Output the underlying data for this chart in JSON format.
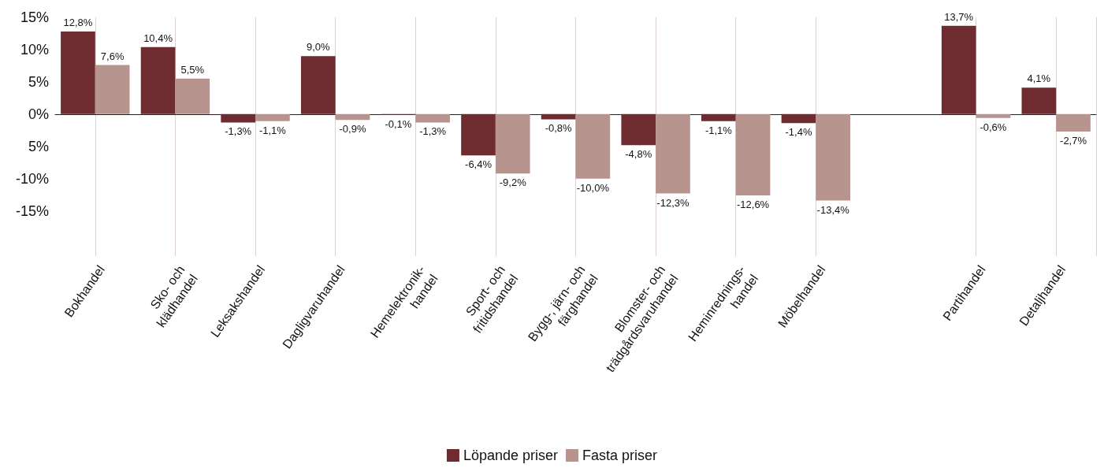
{
  "chart_data": {
    "type": "bar",
    "categories": [
      "Bokhandel",
      "Sko- och\nklädhandel",
      "Leksakshandel",
      "Dagligvaruhandel",
      "Hemelektronik-\nhandel",
      "Sport- och\nfritidshandel",
      "Bygg-, järn- och\nfärghandel",
      "Blomster- och\nträdgårdsvaruhandel",
      "Heminrednings-\nhandel",
      "Möbelhandel",
      null,
      "Partihandel",
      "Detaljhandel"
    ],
    "series": [
      {
        "name": "Löpande priser",
        "color": "#6e2c31",
        "values": [
          12.8,
          10.4,
          -1.3,
          9.0,
          -0.1,
          -6.4,
          -0.8,
          -4.8,
          -1.1,
          -1.4,
          null,
          13.7,
          4.1
        ],
        "value_labels": [
          "12,8%",
          "10,4%",
          "-1,3%",
          "9,0%",
          "-0,1%",
          "-6,4%",
          "-0,8%",
          "-4,8%",
          "-1,1%",
          "-1,4%",
          null,
          "13,7%",
          "4,1%"
        ]
      },
      {
        "name": "Fasta priser",
        "color": "#b8948f",
        "values": [
          7.6,
          5.5,
          -1.1,
          -0.9,
          -1.3,
          -9.2,
          -10.0,
          -12.3,
          -12.6,
          -13.4,
          null,
          -0.6,
          -2.7
        ],
        "value_labels": [
          "7,6%",
          "5,5%",
          "-1,1%",
          "-0,9%",
          "-1,3%",
          "-9,2%",
          "-10,0%",
          "-12,3%",
          "-12,6%",
          "-13,4%",
          null,
          "-0,6%",
          "-2,7%"
        ]
      }
    ],
    "ylim": [
      -22,
      15
    ],
    "yticks": [
      {
        "value": 15,
        "label": "15%"
      },
      {
        "value": 10,
        "label": "10%"
      },
      {
        "value": 5,
        "label": "5%"
      },
      {
        "value": 0,
        "label": "0%"
      },
      {
        "value": -5,
        "label": "5%"
      },
      {
        "value": -10,
        "label": "-10%"
      },
      {
        "value": -15,
        "label": "-15%"
      }
    ],
    "grid": "x",
    "legend": "bottom"
  }
}
